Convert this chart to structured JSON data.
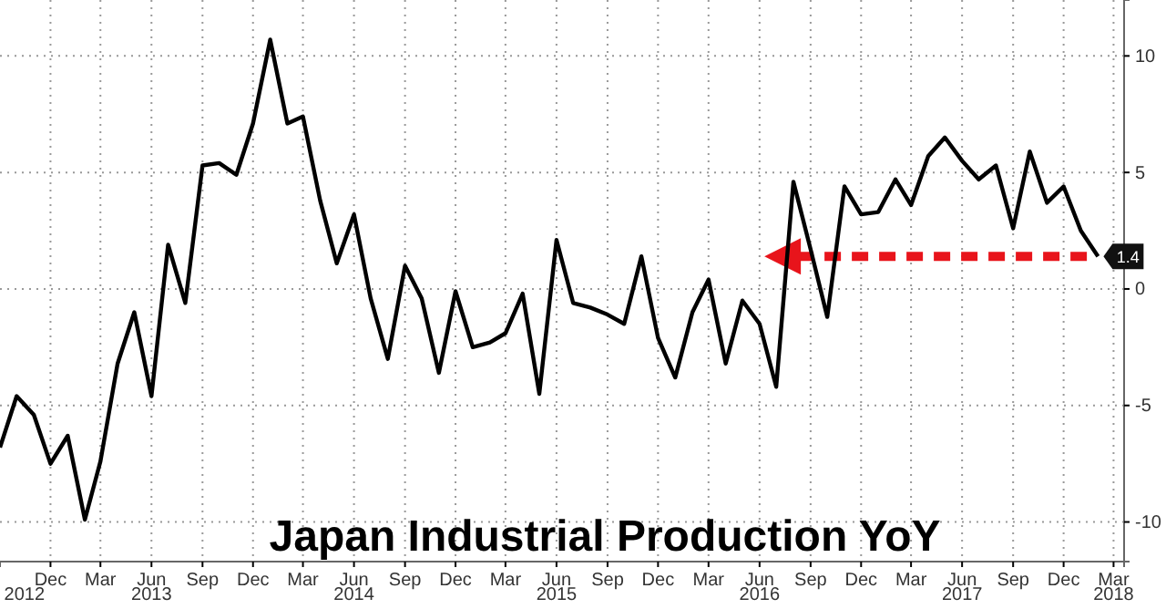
{
  "chart_data": {
    "type": "line",
    "title": "Japan Industrial Production YoY",
    "x": [
      "2012-09",
      "2012-10",
      "2012-11",
      "2012-12",
      "2013-01",
      "2013-02",
      "2013-03",
      "2013-04",
      "2013-05",
      "2013-06",
      "2013-07",
      "2013-08",
      "2013-09",
      "2013-10",
      "2013-11",
      "2013-12",
      "2014-01",
      "2014-02",
      "2014-03",
      "2014-04",
      "2014-05",
      "2014-06",
      "2014-07",
      "2014-08",
      "2014-09",
      "2014-10",
      "2014-11",
      "2014-12",
      "2015-01",
      "2015-02",
      "2015-03",
      "2015-04",
      "2015-05",
      "2015-06",
      "2015-07",
      "2015-08",
      "2015-09",
      "2015-10",
      "2015-11",
      "2015-12",
      "2016-01",
      "2016-02",
      "2016-03",
      "2016-04",
      "2016-05",
      "2016-06",
      "2016-07",
      "2016-08",
      "2016-09",
      "2016-10",
      "2016-11",
      "2016-12",
      "2017-01",
      "2017-02",
      "2017-03",
      "2017-04",
      "2017-05",
      "2017-06",
      "2017-07",
      "2017-08",
      "2017-09",
      "2017-10",
      "2017-11",
      "2017-12",
      "2018-01",
      "2018-02"
    ],
    "series": [
      {
        "color": "#000000",
        "values": [
          -6.8,
          -4.6,
          -5.4,
          -7.5,
          -6.3,
          -9.9,
          -7.4,
          -3.2,
          -1.0,
          -4.6,
          1.9,
          -0.6,
          5.3,
          5.4,
          4.9,
          7.1,
          10.7,
          7.1,
          7.4,
          3.8,
          1.1,
          3.2,
          -0.4,
          -3.0,
          1.0,
          -0.4,
          -3.6,
          -0.1,
          -2.5,
          -2.3,
          -1.9,
          -0.2,
          -4.5,
          2.1,
          -0.6,
          -0.8,
          -1.1,
          -1.5,
          1.4,
          -2.1,
          -3.8,
          -1.0,
          0.4,
          -3.2,
          -0.5,
          -1.5,
          -4.2,
          4.6,
          1.7,
          -1.2,
          4.4,
          3.2,
          3.3,
          4.7,
          3.6,
          5.7,
          6.5,
          5.5,
          4.7,
          5.3,
          2.6,
          5.9,
          3.7,
          4.4,
          2.5,
          1.4
        ],
        "value_labels": [
          null,
          null,
          null,
          null,
          null,
          null,
          null,
          null,
          null,
          null,
          null,
          null,
          null,
          null,
          null,
          null,
          null,
          null,
          null,
          null,
          null,
          null,
          null,
          null,
          null,
          null,
          null,
          null,
          null,
          null,
          null,
          null,
          null,
          null,
          null,
          null,
          null,
          null,
          null,
          null,
          null,
          null,
          null,
          null,
          null,
          null,
          null,
          null,
          null,
          null,
          null,
          null,
          null,
          null,
          null,
          null,
          null,
          null,
          null,
          null,
          null,
          null,
          null,
          null,
          null,
          "1.4"
        ]
      }
    ],
    "xlim": [
      "2012-09-01",
      "2018-03-20"
    ],
    "ylim": [
      -11.7,
      12.4
    ],
    "xticks": [
      {
        "value": "2012-12",
        "label": "Dec"
      },
      {
        "value": "2013-03",
        "label": "Mar"
      },
      {
        "value": "2013-06",
        "label": "Jun"
      },
      {
        "value": "2013-09",
        "label": "Sep"
      },
      {
        "value": "2013-12",
        "label": "Dec"
      },
      {
        "value": "2014-03",
        "label": "Mar"
      },
      {
        "value": "2014-06",
        "label": "Jun"
      },
      {
        "value": "2014-09",
        "label": "Sep"
      },
      {
        "value": "2014-12",
        "label": "Dec"
      },
      {
        "value": "2015-03",
        "label": "Mar"
      },
      {
        "value": "2015-06",
        "label": "Jun"
      },
      {
        "value": "2015-09",
        "label": "Sep"
      },
      {
        "value": "2015-12",
        "label": "Dec"
      },
      {
        "value": "2016-03",
        "label": "Mar"
      },
      {
        "value": "2016-06",
        "label": "Jun"
      },
      {
        "value": "2016-09",
        "label": "Sep"
      },
      {
        "value": "2016-12",
        "label": "Dec"
      },
      {
        "value": "2017-03",
        "label": "Mar"
      },
      {
        "value": "2017-06",
        "label": "Jun"
      },
      {
        "value": "2017-09",
        "label": "Sep"
      },
      {
        "value": "2017-12",
        "label": "Dec"
      },
      {
        "value": "2018-03",
        "label": "Mar"
      }
    ],
    "x2lim": [
      "2012-09-01",
      "2018-03-20"
    ],
    "x2ticks": [
      {
        "value": "2012-10-15",
        "label": "2012"
      },
      {
        "value": "2013-06",
        "label": "2013"
      },
      {
        "value": "2014-06",
        "label": "2014"
      },
      {
        "value": "2015-06",
        "label": "2015"
      },
      {
        "value": "2016-06",
        "label": "2016"
      },
      {
        "value": "2017-06",
        "label": "2017"
      },
      {
        "value": "2018-03",
        "label": "2018"
      }
    ],
    "yticks": [
      -10,
      -5,
      0,
      5,
      10
    ],
    "ref_lines": [
      {
        "axis": "y",
        "value": 1.4,
        "color": "#e8141b",
        "line_style": "dashed"
      }
    ],
    "grid": true,
    "line_style": "solid",
    "marker": "none"
  }
}
